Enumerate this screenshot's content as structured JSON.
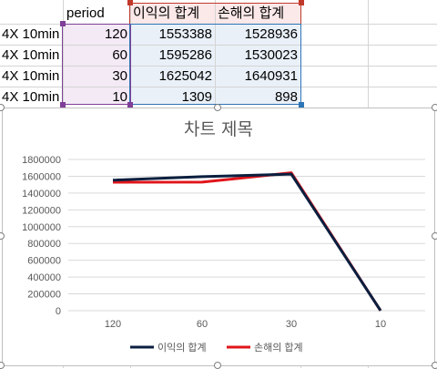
{
  "sheet": {
    "header": {
      "period": "period",
      "profit": "이익의 합계",
      "loss": "손해의 합계"
    },
    "rows": [
      {
        "label": "4X 10min",
        "period": "120",
        "profit": "1553388",
        "loss": "1528936"
      },
      {
        "label": "4X 10min",
        "period": "60",
        "profit": "1595286",
        "loss": "1530023"
      },
      {
        "label": "4X 10min",
        "period": "30",
        "profit": "1625042",
        "loss": "1640931"
      },
      {
        "label": "4X 10min",
        "period": "10",
        "profit": "1309",
        "loss": "898"
      }
    ]
  },
  "chart_data": {
    "type": "line",
    "title": "차트 제목",
    "categories": [
      "120",
      "60",
      "30",
      "10"
    ],
    "series": [
      {
        "name": "이익의 합계",
        "values": [
          1553388,
          1595286,
          1625042,
          1309
        ],
        "color": "#0b1f3f"
      },
      {
        "name": "손해의 합계",
        "values": [
          1528936,
          1530023,
          1640931,
          898
        ],
        "color": "#e0161b"
      }
    ],
    "ylim": [
      0,
      1800000
    ],
    "yticks": [
      "0",
      "200000",
      "400000",
      "600000",
      "800000",
      "1000000",
      "1200000",
      "1400000",
      "1600000",
      "1800000"
    ],
    "grid": true,
    "legend": "bottom"
  },
  "colors": {
    "purple_range": "#7f3f98",
    "blue_range": "#2e75b6",
    "red_range": "#c0392b"
  }
}
